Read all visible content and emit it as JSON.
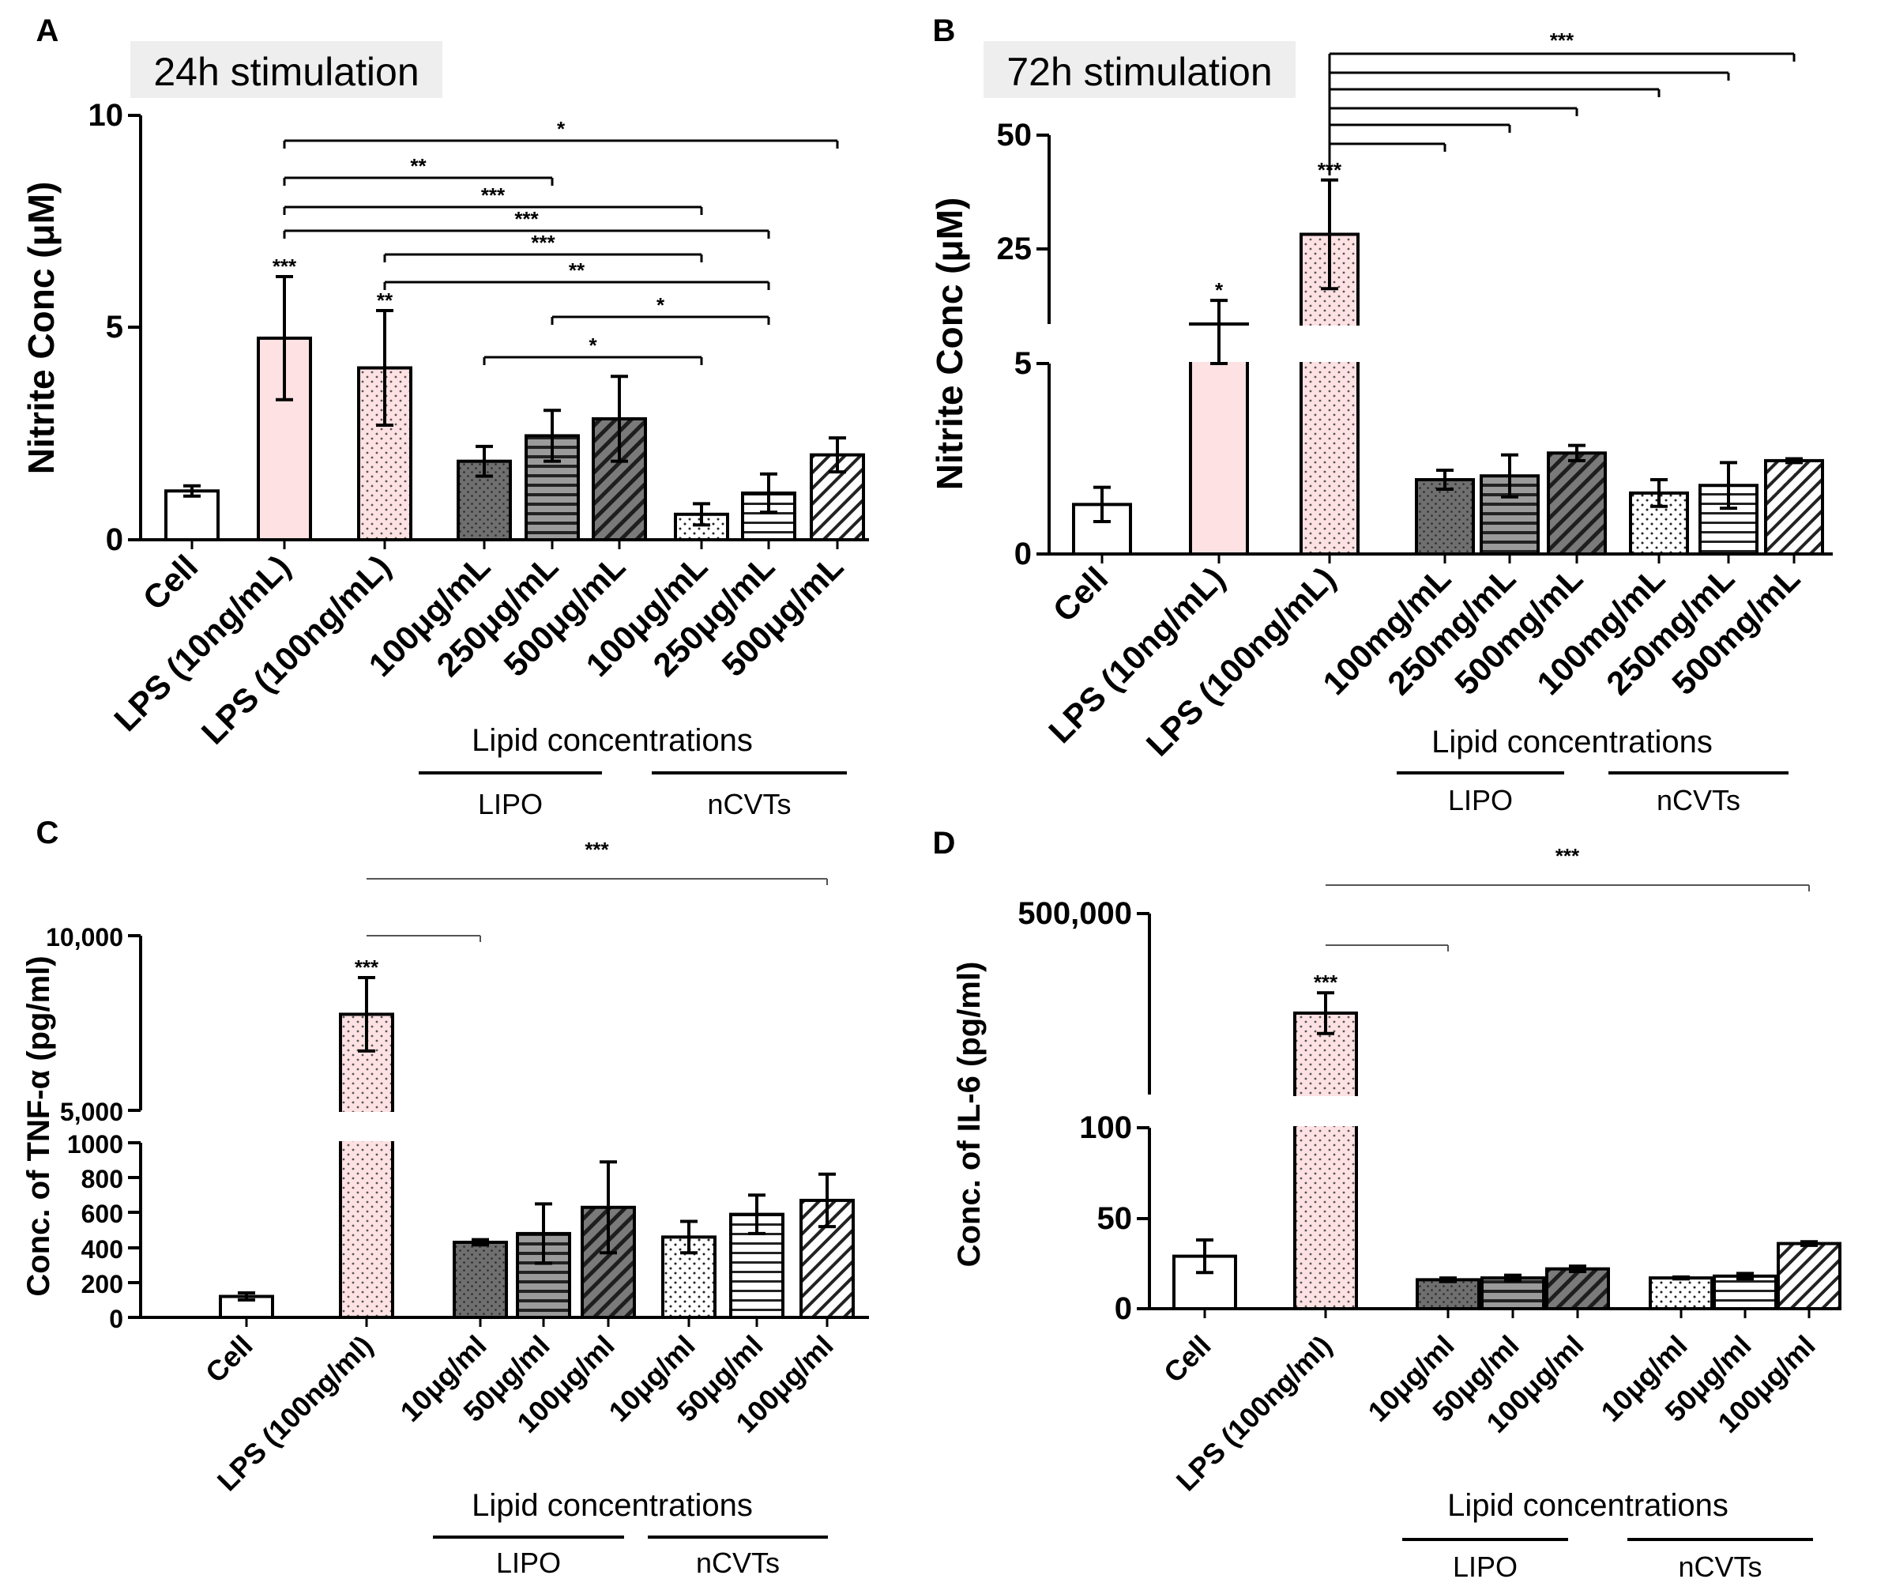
{
  "figure_colors": {
    "lps": "#fde1e3",
    "dark": "#6f6f6f",
    "medium": "#9a9a9a",
    "background_label": "#eeeeee"
  },
  "chart_data": [
    {
      "panel": "A",
      "type": "bar",
      "stimulation_label": "24h stimulation",
      "ylabel": "Nitrite Conc (μM)",
      "ylim": [
        0,
        10
      ],
      "yticks": [
        "0",
        "5",
        "10"
      ],
      "categories": [
        "Cell",
        "LPS (10ng/mL)",
        "LPS (100ng/mL)",
        "100μg/mL",
        "250μg/mL",
        "500μg/mL",
        "100μg/mL",
        "250μg/mL",
        "500μg/mL"
      ],
      "values": [
        1.15,
        4.75,
        4.05,
        1.85,
        2.45,
        2.85,
        0.6,
        1.1,
        2.0
      ],
      "errors": [
        0.12,
        1.45,
        1.35,
        0.35,
        0.6,
        1.0,
        0.25,
        0.45,
        0.4
      ],
      "patterns": [
        "white",
        "lps",
        "lps_dots",
        "dark_dots",
        "hlines",
        "diag_dark",
        "white_dots",
        "white_hlines",
        "white_diag"
      ],
      "bar_stars": [
        "",
        "***",
        "**",
        "",
        "",
        "",
        "",
        "",
        ""
      ],
      "group_title": "Lipid concentrations",
      "groups": [
        "LIPO",
        "nCVTs"
      ],
      "comparisons": [
        {
          "from": 1,
          "to": 8,
          "label": "*"
        },
        {
          "from": 1,
          "to": 4,
          "label": "**"
        },
        {
          "from": 1,
          "to": 6,
          "label": "***"
        },
        {
          "from": 1,
          "to": 7,
          "label": "***"
        },
        {
          "from": 2,
          "to": 6,
          "label": "***"
        },
        {
          "from": 2,
          "to": 7,
          "label": "**"
        },
        {
          "from": 4,
          "to": 7,
          "label": "*"
        },
        {
          "from": 3,
          "to": 6,
          "label": "*"
        }
      ]
    },
    {
      "panel": "B",
      "type": "bar",
      "stimulation_label": "72h stimulation",
      "ylabel": "Nitrite Conc (μM)",
      "broken_axis": true,
      "ylim_lower": [
        0,
        5
      ],
      "ylim_upper": [
        10,
        50
      ],
      "yticks": [
        "0",
        "5",
        "25",
        "50"
      ],
      "categories": [
        "Cell",
        "LPS (10ng/mL)",
        "LPS (100ng/mL)",
        "100mg/mL",
        "250mg/mL",
        "500mg/mL",
        "100mg/mL",
        "250mg/mL",
        "500mg/mL"
      ],
      "values": [
        1.3,
        10.0,
        29.0,
        1.95,
        2.05,
        2.65,
        1.6,
        1.8,
        2.45
      ],
      "errors": [
        0.45,
        5.0,
        11.5,
        0.25,
        0.55,
        0.2,
        0.35,
        0.6,
        0.05
      ],
      "patterns": [
        "white",
        "lps",
        "lps_dots",
        "dark_dots",
        "hlines",
        "diag_dark",
        "white_dots",
        "white_hlines",
        "white_diag"
      ],
      "bar_stars": [
        "",
        "*",
        "***",
        "",
        "",
        "",
        "",
        "",
        ""
      ],
      "group_title": "Lipid concentrations",
      "groups": [
        "LIPO",
        "nCVTs"
      ],
      "comparisons": [
        {
          "from": 2,
          "to": 3,
          "label": ""
        },
        {
          "from": 2,
          "to": 4,
          "label": ""
        },
        {
          "from": 2,
          "to": 5,
          "label": ""
        },
        {
          "from": 2,
          "to": 6,
          "label": ""
        },
        {
          "from": 2,
          "to": 7,
          "label": ""
        },
        {
          "from": 2,
          "to": 8,
          "label": "***"
        }
      ]
    },
    {
      "panel": "C",
      "type": "bar",
      "ylabel": "Conc. of TNF-α  (pg/ml)",
      "broken_axis": true,
      "ylim_lower": [
        0,
        1000
      ],
      "ylim_upper": [
        5000,
        10000
      ],
      "yticks": [
        "0",
        "200",
        "400",
        "600",
        "800",
        "1000",
        "5,000",
        "10,000"
      ],
      "categories": [
        "Cell",
        "LPS (100ng/ml)",
        "10μg/ml",
        "50μg/ml",
        "100μg/ml",
        "10μg/ml",
        "50μg/ml",
        "100μg/ml"
      ],
      "values": [
        120,
        7750,
        430,
        480,
        630,
        460,
        590,
        670
      ],
      "errors": [
        20,
        1050,
        15,
        170,
        260,
        90,
        110,
        150
      ],
      "patterns": [
        "white",
        "lps_dots",
        "dark_dots",
        "hlines",
        "diag_dark",
        "white_dots",
        "white_hlines",
        "white_diag"
      ],
      "bar_stars": [
        "",
        "***",
        "",
        "",
        "",
        "",
        "",
        ""
      ],
      "group_title": "Lipid concentrations",
      "groups": [
        "LIPO",
        "nCVTs"
      ],
      "comparisons": [
        {
          "from": 1,
          "to": 2,
          "label": ""
        },
        {
          "from": 1,
          "to": 7,
          "label": "***"
        }
      ]
    },
    {
      "panel": "D",
      "type": "bar",
      "ylabel": "Conc. of IL-6 (pg/ml)",
      "broken_axis": true,
      "ylim_lower": [
        0,
        100
      ],
      "ylim_upper": [
        100000,
        500000
      ],
      "yticks": [
        "0",
        "50",
        "100",
        "500,000"
      ],
      "categories": [
        "Cell",
        "LPS (100ng/ml)",
        "10μg/ml",
        "50μg/ml",
        "100μg/ml",
        "10μg/ml",
        "50μg/ml",
        "100μg/ml"
      ],
      "values": [
        29,
        280000,
        16,
        17,
        22,
        17,
        18,
        36
      ],
      "errors": [
        9,
        45000,
        1,
        1.5,
        1.5,
        0.5,
        1.5,
        1
      ],
      "patterns": [
        "white",
        "lps_dots",
        "dark_dots",
        "hlines",
        "diag_dark",
        "white_dots",
        "white_hlines",
        "white_diag"
      ],
      "bar_stars": [
        "",
        "***",
        "",
        "",
        "",
        "",
        "",
        ""
      ],
      "group_title": "Lipid concentrations",
      "groups": [
        "LIPO",
        "nCVTs"
      ],
      "comparisons": [
        {
          "from": 1,
          "to": 2,
          "label": ""
        },
        {
          "from": 1,
          "to": 7,
          "label": "***"
        }
      ]
    }
  ]
}
